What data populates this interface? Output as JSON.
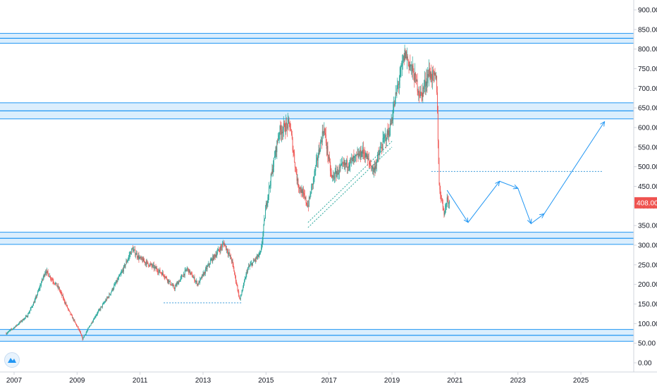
{
  "chart_data": {
    "type": "candlestick",
    "x_axis": {
      "tick_labels": [
        "2007",
        "2009",
        "2011",
        "2013",
        "2015",
        "2017",
        "2019",
        "2021",
        "2023",
        "2025"
      ]
    },
    "y_axis": {
      "range": [
        0,
        900
      ],
      "tick_labels": [
        "900.00",
        "850.00",
        "800.00",
        "750.00",
        "700.00",
        "650.00",
        "600.00",
        "550.00",
        "500.00",
        "450.00",
        "400.00",
        "350.00",
        "300.00",
        "250.00",
        "200.00",
        "150.00",
        "100.00",
        "50.00",
        "0.00"
      ],
      "position": "right"
    },
    "last_price": {
      "value": 408,
      "label": "408.00",
      "color": "#ef5350"
    },
    "colors": {
      "up": "#26a69a",
      "down": "#ef5350",
      "zone": "#2196f3",
      "arrow": "#2196f3"
    },
    "price_path": [
      [
        "2006-10-01",
        75
      ],
      [
        "2007-01-01",
        90
      ],
      [
        "2007-06-01",
        120
      ],
      [
        "2007-09-01",
        160
      ],
      [
        "2008-01-01",
        235
      ],
      [
        "2008-06-01",
        190
      ],
      [
        "2008-10-01",
        130
      ],
      [
        "2009-02-01",
        80
      ],
      [
        "2009-03-01",
        60
      ],
      [
        "2009-08-01",
        120
      ],
      [
        "2010-01-01",
        170
      ],
      [
        "2010-06-01",
        230
      ],
      [
        "2010-10-01",
        290
      ],
      [
        "2011-01-01",
        265
      ],
      [
        "2011-06-01",
        245
      ],
      [
        "2011-10-01",
        225
      ],
      [
        "2012-02-01",
        190
      ],
      [
        "2012-07-01",
        240
      ],
      [
        "2012-11-01",
        200
      ],
      [
        "2013-04-01",
        260
      ],
      [
        "2013-09-01",
        305
      ],
      [
        "2013-12-01",
        260
      ],
      [
        "2014-03-01",
        160
      ],
      [
        "2014-06-01",
        240
      ],
      [
        "2014-11-01",
        280
      ],
      [
        "2015-01-01",
        400
      ],
      [
        "2015-06-01",
        590
      ],
      [
        "2015-10-01",
        610
      ],
      [
        "2016-01-01",
        460
      ],
      [
        "2016-05-01",
        400
      ],
      [
        "2016-08-01",
        500
      ],
      [
        "2016-11-01",
        600
      ],
      [
        "2017-02-01",
        470
      ],
      [
        "2017-06-01",
        500
      ],
      [
        "2017-11-01",
        520
      ],
      [
        "2018-02-01",
        540
      ],
      [
        "2018-06-01",
        490
      ],
      [
        "2018-10-01",
        570
      ],
      [
        "2018-12-01",
        590
      ],
      [
        "2019-03-01",
        700
      ],
      [
        "2019-06-01",
        790
      ],
      [
        "2019-09-01",
        740
      ],
      [
        "2019-12-01",
        680
      ],
      [
        "2020-03-01",
        740
      ],
      [
        "2020-06-01",
        720
      ],
      [
        "2020-07-01",
        450
      ],
      [
        "2020-09-01",
        380
      ],
      [
        "2020-10-01",
        420
      ],
      [
        "2020-11-01",
        408
      ]
    ],
    "zones": [
      {
        "top": 840,
        "bottom": 815
      },
      {
        "top": 663,
        "bottom": 622
      },
      {
        "top": 333,
        "bottom": 302
      },
      {
        "top": 85,
        "bottom": 55
      }
    ],
    "horizontal_lines": [
      {
        "value": 488,
        "from": "2020-04-01",
        "to": "2025-09-01"
      },
      {
        "value": 153,
        "from": "2011-10-01",
        "to": "2014-04-01"
      }
    ],
    "trend_channel": [
      {
        "from": [
          "2016-05-01",
          358
        ],
        "to": [
          "2019-01-01",
          565
        ]
      },
      {
        "from": [
          "2016-05-01",
          345
        ],
        "to": [
          "2019-01-01",
          550
        ]
      }
    ],
    "forecast_path": [
      [
        "2020-10-01",
        440
      ],
      [
        "2021-06-01",
        358
      ],
      [
        "2022-06-01",
        463
      ],
      [
        "2023-01-01",
        445
      ],
      [
        "2023-06-01",
        355
      ],
      [
        "2023-11-01",
        380
      ],
      [
        "2025-10-01",
        615
      ]
    ]
  }
}
